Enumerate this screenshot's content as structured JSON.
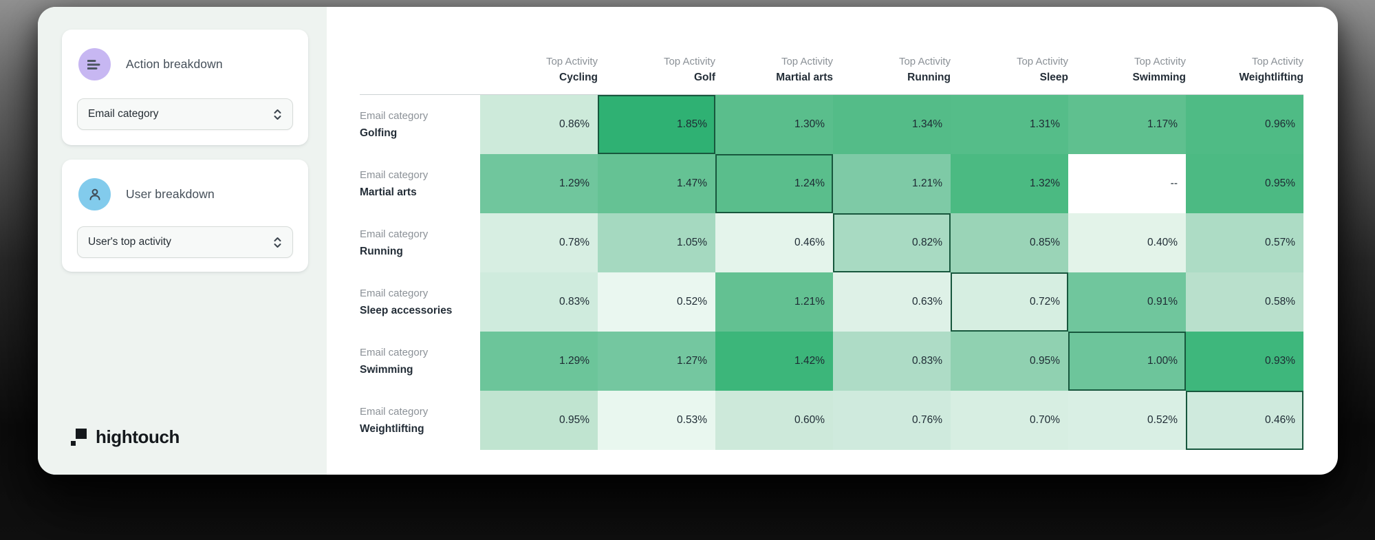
{
  "colors": {
    "sidebar_bg": "#eef3f0",
    "action_icon_bg": "#c7b7f2",
    "user_icon_bg": "#82cbec",
    "heatmap_light": "#e9f7ef",
    "heatmap_dark": "#2fb173",
    "highlight_border": "#17573d",
    "missing_cell_bg": "#ffffff"
  },
  "sidebar": {
    "action_card": {
      "title": "Action breakdown",
      "dropdown_value": "Email category"
    },
    "user_card": {
      "title": "User breakdown",
      "dropdown_value": "User's top activity"
    },
    "logo_text": "hightouch"
  },
  "chart_data": {
    "type": "heatmap",
    "column_prefix": "Top Activity",
    "row_prefix": "Email category",
    "columns": [
      "Cycling",
      "Golf",
      "Martial arts",
      "Running",
      "Sleep",
      "Swimming",
      "Weightlifting"
    ],
    "rows": [
      {
        "label": "Golfing",
        "highlight_col": 1,
        "values": [
          "0.86%",
          "1.85%",
          "1.30%",
          "1.34%",
          "1.31%",
          "1.17%",
          "0.96%"
        ],
        "cell_colors": [
          "#cdeada",
          "#2fb173",
          "#5abe8c",
          "#54bc88",
          "#55bd89",
          "#5fc08f",
          "#4fbb85"
        ]
      },
      {
        "label": "Martial arts",
        "highlight_col": 2,
        "values": [
          "1.29%",
          "1.47%",
          "1.24%",
          "1.21%",
          "1.32%",
          "--",
          "0.95%"
        ],
        "cell_colors": [
          "#70c69d",
          "#65c294",
          "#5abe8c",
          "#7ecaa6",
          "#4bba82",
          "#ffffff",
          "#4cba83"
        ]
      },
      {
        "label": "Running",
        "highlight_col": 3,
        "values": [
          "0.78%",
          "1.05%",
          "0.46%",
          "0.82%",
          "0.85%",
          "0.40%",
          "0.57%"
        ],
        "cell_colors": [
          "#d7eee2",
          "#a5d9c0",
          "#e4f4eb",
          "#a8dac2",
          "#9ad4b7",
          "#e3f3e9",
          "#addcc5"
        ]
      },
      {
        "label": "Sleep accessories",
        "highlight_col": 4,
        "values": [
          "0.83%",
          "0.52%",
          "1.21%",
          "0.63%",
          "0.72%",
          "0.91%",
          "0.58%"
        ],
        "cell_colors": [
          "#cfebdd",
          "#eaf7f0",
          "#63c192",
          "#def1e7",
          "#d6eee1",
          "#70c69d",
          "#b9e0cc"
        ]
      },
      {
        "label": "Swimming",
        "highlight_col": 5,
        "values": [
          "1.29%",
          "1.27%",
          "1.42%",
          "0.83%",
          "0.95%",
          "1.00%",
          "0.93%"
        ],
        "cell_colors": [
          "#6cc59a",
          "#74c7a0",
          "#3cb67a",
          "#aedcc6",
          "#90d1b1",
          "#6dc59b",
          "#3eb77c"
        ]
      },
      {
        "label": "Weightlifting",
        "highlight_col": 6,
        "values": [
          "0.95%",
          "0.53%",
          "0.60%",
          "0.76%",
          "0.70%",
          "0.52%",
          "0.46%"
        ],
        "cell_colors": [
          "#c0e4d0",
          "#e9f7ef",
          "#cde9da",
          "#cfeadd",
          "#d7eee2",
          "#d9efe4",
          "#cfeadd"
        ]
      }
    ]
  }
}
